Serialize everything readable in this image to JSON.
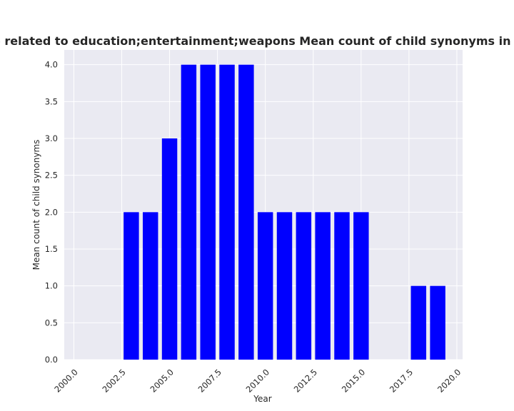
{
  "chart_data": {
    "type": "bar",
    "title": "ries are related to education;entertainment;weapons Mean count of child synonyms in privacy p",
    "xlabel": "Year",
    "ylabel": "Mean count of child synonyms",
    "x": [
      2003,
      2004,
      2005,
      2006,
      2007,
      2008,
      2009,
      2010,
      2011,
      2012,
      2013,
      2014,
      2015,
      2018,
      2019
    ],
    "values": [
      2,
      2,
      3,
      4,
      4,
      4,
      4,
      2,
      2,
      2,
      2,
      2,
      2,
      1,
      1
    ],
    "xlim": [
      1999.5,
      2020.3
    ],
    "ylim": [
      0,
      4.2
    ],
    "xticks": [
      2000.0,
      2002.5,
      2005.0,
      2007.5,
      2010.0,
      2012.5,
      2015.0,
      2017.5,
      2020.0
    ],
    "xtick_labels": [
      "2000.0",
      "2002.5",
      "2005.0",
      "2007.5",
      "2010.0",
      "2012.5",
      "2015.0",
      "2017.5",
      "2020.0"
    ],
    "yticks": [
      0.0,
      0.5,
      1.0,
      1.5,
      2.0,
      2.5,
      3.0,
      3.5,
      4.0
    ],
    "ytick_labels": [
      "0.0",
      "0.5",
      "1.0",
      "1.5",
      "2.0",
      "2.5",
      "3.0",
      "3.5",
      "4.0"
    ],
    "bar_width": 0.8,
    "bar_color": "#0000ff",
    "background": "#eaeaf2",
    "grid": true,
    "grid_color": "#ffffff"
  }
}
